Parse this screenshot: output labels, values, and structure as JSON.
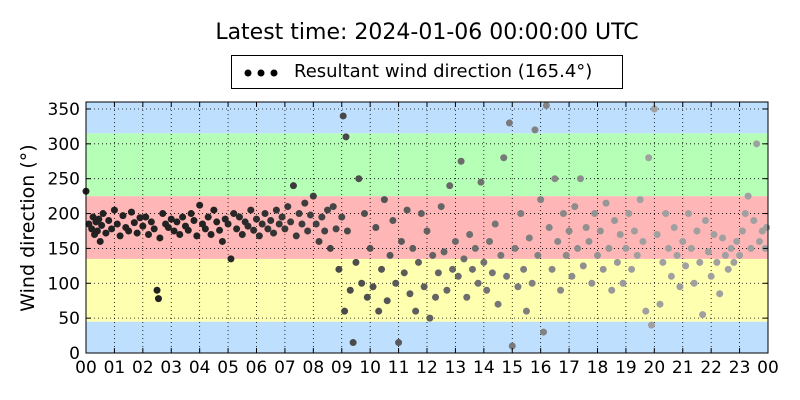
{
  "chart_data": {
    "type": "scatter",
    "title": "Latest time: 2024-01-06 00:00:00 UTC",
    "ylabel": "Wind direction (°)",
    "xlabel": "",
    "legend": {
      "label": "Resultant wind direction (165.4°)",
      "placement": "top-center"
    },
    "xlim": [
      0,
      24
    ],
    "ylim": [
      0,
      360
    ],
    "x_ticks": [
      "00",
      "01",
      "02",
      "03",
      "04",
      "05",
      "06",
      "07",
      "08",
      "09",
      "10",
      "11",
      "12",
      "13",
      "14",
      "15",
      "16",
      "17",
      "18",
      "19",
      "20",
      "21",
      "22",
      "23",
      "00"
    ],
    "y_ticks": [
      0,
      50,
      100,
      150,
      200,
      250,
      300,
      350
    ],
    "grid": true,
    "bands": [
      {
        "from": 0,
        "to": 45,
        "color": "#bfdfff"
      },
      {
        "from": 45,
        "to": 135,
        "color": "#ffffb0"
      },
      {
        "from": 135,
        "to": 225,
        "color": "#ffb6b6"
      },
      {
        "from": 225,
        "to": 315,
        "color": "#b6ffb6"
      },
      {
        "from": 315,
        "to": 360,
        "color": "#bfdfff"
      }
    ],
    "series": [
      {
        "color_old": "#222222",
        "color_new": "#a0a0a0",
        "points": [
          [
            0.0,
            232
          ],
          [
            0.1,
            185
          ],
          [
            0.2,
            178
          ],
          [
            0.25,
            195
          ],
          [
            0.3,
            170
          ],
          [
            0.35,
            188
          ],
          [
            0.4,
            175
          ],
          [
            0.45,
            192
          ],
          [
            0.5,
            160
          ],
          [
            0.55,
            183
          ],
          [
            0.6,
            200
          ],
          [
            0.7,
            172
          ],
          [
            0.8,
            190
          ],
          [
            0.9,
            178
          ],
          [
            1.0,
            205
          ],
          [
            1.1,
            185
          ],
          [
            1.2,
            168
          ],
          [
            1.3,
            197
          ],
          [
            1.4,
            180
          ],
          [
            1.5,
            175
          ],
          [
            1.6,
            202
          ],
          [
            1.7,
            187
          ],
          [
            1.8,
            172
          ],
          [
            1.9,
            194
          ],
          [
            2.0,
            182
          ],
          [
            2.1,
            195
          ],
          [
            2.2,
            170
          ],
          [
            2.3,
            188
          ],
          [
            2.4,
            178
          ],
          [
            2.5,
            90
          ],
          [
            2.55,
            78
          ],
          [
            2.6,
            165
          ],
          [
            2.7,
            200
          ],
          [
            2.8,
            185
          ],
          [
            2.9,
            180
          ],
          [
            3.0,
            192
          ],
          [
            3.1,
            175
          ],
          [
            3.2,
            188
          ],
          [
            3.3,
            170
          ],
          [
            3.4,
            195
          ],
          [
            3.5,
            182
          ],
          [
            3.6,
            176
          ],
          [
            3.7,
            200
          ],
          [
            3.8,
            190
          ],
          [
            3.9,
            168
          ],
          [
            4.0,
            212
          ],
          [
            4.1,
            185
          ],
          [
            4.2,
            178
          ],
          [
            4.3,
            195
          ],
          [
            4.4,
            170
          ],
          [
            4.5,
            205
          ],
          [
            4.6,
            188
          ],
          [
            4.7,
            176
          ],
          [
            4.8,
            160
          ],
          [
            4.9,
            192
          ],
          [
            5.0,
            185
          ],
          [
            5.1,
            135
          ],
          [
            5.2,
            200
          ],
          [
            5.3,
            178
          ],
          [
            5.4,
            195
          ],
          [
            5.5,
            170
          ],
          [
            5.6,
            188
          ],
          [
            5.7,
            182
          ],
          [
            5.8,
            205
          ],
          [
            5.9,
            176
          ],
          [
            6.0,
            192
          ],
          [
            6.1,
            168
          ],
          [
            6.2,
            185
          ],
          [
            6.3,
            200
          ],
          [
            6.4,
            178
          ],
          [
            6.5,
            190
          ],
          [
            6.6,
            172
          ],
          [
            6.7,
            205
          ],
          [
            6.8,
            185
          ],
          [
            6.9,
            195
          ],
          [
            7.0,
            178
          ],
          [
            7.1,
            210
          ],
          [
            7.2,
            188
          ],
          [
            7.3,
            240
          ],
          [
            7.4,
            168
          ],
          [
            7.5,
            200
          ],
          [
            7.6,
            185
          ],
          [
            7.7,
            215
          ],
          [
            7.8,
            175
          ],
          [
            7.9,
            198
          ],
          [
            8.0,
            225
          ],
          [
            8.1,
            185
          ],
          [
            8.2,
            160
          ],
          [
            8.3,
            195
          ],
          [
            8.4,
            175
          ],
          [
            8.5,
            205
          ],
          [
            8.6,
            150
          ],
          [
            8.7,
            210
          ],
          [
            8.8,
            178
          ],
          [
            8.9,
            120
          ],
          [
            9.0,
            195
          ],
          [
            9.05,
            340
          ],
          [
            9.1,
            60
          ],
          [
            9.15,
            310
          ],
          [
            9.2,
            175
          ],
          [
            9.3,
            90
          ],
          [
            9.4,
            15
          ],
          [
            9.5,
            130
          ],
          [
            9.6,
            250
          ],
          [
            9.7,
            100
          ],
          [
            9.8,
            200
          ],
          [
            9.9,
            80
          ],
          [
            10.0,
            150
          ],
          [
            10.1,
            95
          ],
          [
            10.2,
            180
          ],
          [
            10.3,
            60
          ],
          [
            10.4,
            120
          ],
          [
            10.5,
            220
          ],
          [
            10.6,
            75
          ],
          [
            10.7,
            140
          ],
          [
            10.8,
            190
          ],
          [
            10.9,
            100
          ],
          [
            11.0,
            15
          ],
          [
            11.1,
            160
          ],
          [
            11.2,
            115
          ],
          [
            11.3,
            205
          ],
          [
            11.4,
            85
          ],
          [
            11.5,
            150
          ],
          [
            11.6,
            60
          ],
          [
            11.7,
            130
          ],
          [
            11.8,
            200
          ],
          [
            11.9,
            95
          ],
          [
            12.0,
            175
          ],
          [
            12.1,
            50
          ],
          [
            12.2,
            140
          ],
          [
            12.3,
            80
          ],
          [
            12.4,
            115
          ],
          [
            12.5,
            210
          ],
          [
            12.6,
            145
          ],
          [
            12.7,
            90
          ],
          [
            12.8,
            240
          ],
          [
            12.9,
            120
          ],
          [
            13.0,
            160
          ],
          [
            13.1,
            110
          ],
          [
            13.2,
            275
          ],
          [
            13.3,
            135
          ],
          [
            13.4,
            80
          ],
          [
            13.5,
            170
          ],
          [
            13.6,
            120
          ],
          [
            13.7,
            150
          ],
          [
            13.8,
            100
          ],
          [
            13.9,
            245
          ],
          [
            14.0,
            130
          ],
          [
            14.1,
            90
          ],
          [
            14.2,
            160
          ],
          [
            14.3,
            115
          ],
          [
            14.4,
            185
          ],
          [
            14.5,
            70
          ],
          [
            14.6,
            140
          ],
          [
            14.7,
            280
          ],
          [
            14.8,
            110
          ],
          [
            14.9,
            330
          ],
          [
            15.0,
            10
          ],
          [
            15.1,
            150
          ],
          [
            15.2,
            95
          ],
          [
            15.3,
            200
          ],
          [
            15.4,
            120
          ],
          [
            15.5,
            60
          ],
          [
            15.6,
            165
          ],
          [
            15.7,
            100
          ],
          [
            15.8,
            320
          ],
          [
            15.9,
            140
          ],
          [
            16.0,
            220
          ],
          [
            16.1,
            30
          ],
          [
            16.2,
            355
          ],
          [
            16.3,
            180
          ],
          [
            16.4,
            120
          ],
          [
            16.5,
            250
          ],
          [
            16.6,
            160
          ],
          [
            16.7,
            90
          ],
          [
            16.8,
            200
          ],
          [
            16.9,
            140
          ],
          [
            17.0,
            175
          ],
          [
            17.1,
            110
          ],
          [
            17.2,
            210
          ],
          [
            17.3,
            150
          ],
          [
            17.4,
            250
          ],
          [
            17.5,
            125
          ],
          [
            17.6,
            180
          ],
          [
            17.7,
            160
          ],
          [
            17.8,
            100
          ],
          [
            17.9,
            200
          ],
          [
            18.0,
            140
          ],
          [
            18.1,
            175
          ],
          [
            18.2,
            120
          ],
          [
            18.3,
            215
          ],
          [
            18.4,
            150
          ],
          [
            18.5,
            90
          ],
          [
            18.6,
            190
          ],
          [
            18.7,
            130
          ],
          [
            18.8,
            170
          ],
          [
            18.9,
            100
          ],
          [
            19.0,
            150
          ],
          [
            19.1,
            200
          ],
          [
            19.2,
            120
          ],
          [
            19.3,
            175
          ],
          [
            19.4,
            140
          ],
          [
            19.5,
            220
          ],
          [
            19.6,
            160
          ],
          [
            19.7,
            60
          ],
          [
            19.8,
            280
          ],
          [
            19.9,
            40
          ],
          [
            20.0,
            350
          ],
          [
            20.1,
            170
          ],
          [
            20.2,
            70
          ],
          [
            20.3,
            130
          ],
          [
            20.4,
            200
          ],
          [
            20.5,
            150
          ],
          [
            20.6,
            110
          ],
          [
            20.7,
            180
          ],
          [
            20.8,
            140
          ],
          [
            20.9,
            95
          ],
          [
            21.0,
            160
          ],
          [
            21.1,
            125
          ],
          [
            21.2,
            200
          ],
          [
            21.3,
            150
          ],
          [
            21.4,
            100
          ],
          [
            21.5,
            175
          ],
          [
            21.6,
            130
          ],
          [
            21.7,
            55
          ],
          [
            21.8,
            190
          ],
          [
            21.9,
            145
          ],
          [
            22.0,
            110
          ],
          [
            22.1,
            170
          ],
          [
            22.2,
            130
          ],
          [
            22.3,
            85
          ],
          [
            22.4,
            165
          ],
          [
            22.5,
            140
          ],
          [
            22.6,
            120
          ],
          [
            22.7,
            150
          ],
          [
            22.8,
            130
          ],
          [
            22.9,
            160
          ],
          [
            23.0,
            140
          ],
          [
            23.1,
            175
          ],
          [
            23.2,
            200
          ],
          [
            23.3,
            225
          ],
          [
            23.4,
            150
          ],
          [
            23.5,
            190
          ],
          [
            23.6,
            300
          ],
          [
            23.7,
            160
          ],
          [
            23.8,
            175
          ],
          [
            23.9,
            150
          ],
          [
            23.95,
            180
          ]
        ]
      }
    ]
  }
}
